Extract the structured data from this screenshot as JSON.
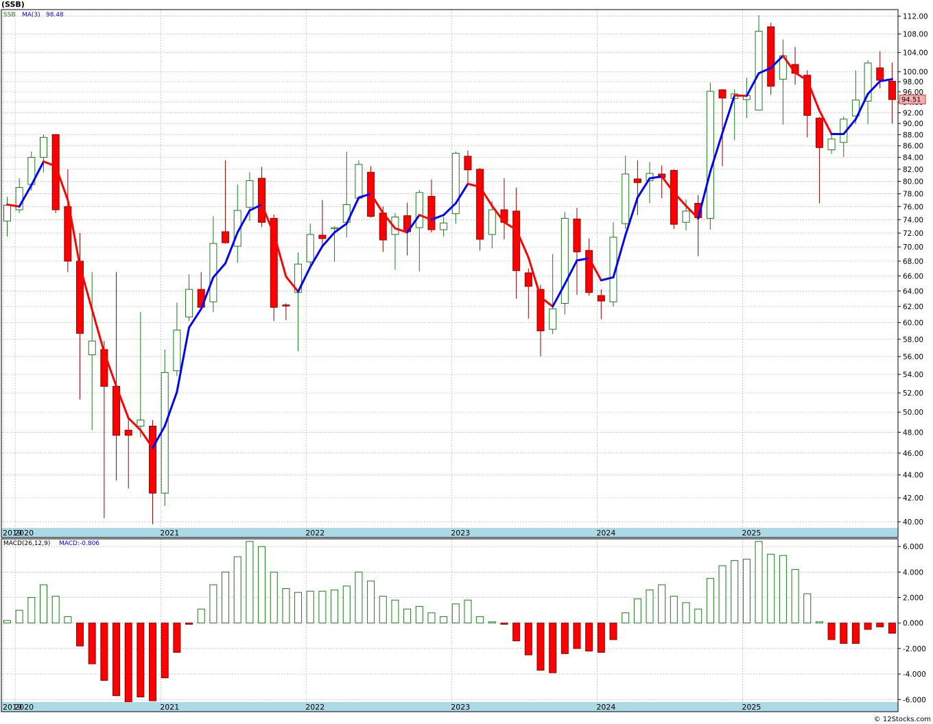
{
  "ticker": "(SSB)",
  "footer": "© 12Stocks.com",
  "colors": {
    "up": "#1b7a1b",
    "down": "#ff0000",
    "ma_up": "#0000ff",
    "ma_down": "#ff0000",
    "grid": "#b4b4b4",
    "axis_band": "#add8e6",
    "price_tag_bg": "#f0b0b0"
  },
  "chart_data": [
    {
      "type": "candlestick",
      "title": "SSB",
      "legend": [
        {
          "label": "SSB",
          "color": "#1b7a1b"
        },
        {
          "label": "MA(3)",
          "color": "#0000ff"
        },
        {
          "label": "98.48",
          "color": "#0000ff"
        }
      ],
      "last_price_label": "94.51",
      "x_tick_labels": [
        "2019",
        "2020",
        "2021",
        "2022",
        "2023",
        "2024",
        "2025"
      ],
      "x_tick_month_index": [
        0,
        1,
        13,
        25,
        37,
        49,
        61
      ],
      "y_tick_labels": [
        "40.00",
        "42.00",
        "44.00",
        "46.00",
        "48.00",
        "50.00",
        "52.00",
        "54.00",
        "56.00",
        "58.00",
        "60.00",
        "62.00",
        "64.00",
        "66.00",
        "68.00",
        "70.00",
        "72.00",
        "74.00",
        "76.00",
        "78.00",
        "80.00",
        "82.00",
        "84.00",
        "86.00",
        "88.00",
        "90.00",
        "92.00",
        "94.00",
        "96.00",
        "98.00",
        "100.00",
        "104.00",
        "108.00",
        "112.00"
      ],
      "y_scale": "log",
      "ylim": [
        39.5,
        113.5
      ],
      "grid": true,
      "candles": [
        {
          "o": 73.8,
          "h": 77.5,
          "l": 71.5,
          "c": 76.2
        },
        {
          "o": 75.5,
          "h": 80.5,
          "l": 75,
          "c": 79
        },
        {
          "o": 79.5,
          "h": 85,
          "l": 78.5,
          "c": 84
        },
        {
          "o": 84,
          "h": 88,
          "l": 81.5,
          "c": 87.5
        },
        {
          "o": 88,
          "h": 88,
          "l": 75,
          "c": 75.5
        },
        {
          "o": 76,
          "h": 82,
          "l": 66.5,
          "c": 68
        },
        {
          "o": 68,
          "h": 72,
          "l": 51.3,
          "c": 58.7
        },
        {
          "o": 56.2,
          "h": 66.5,
          "l": 48.2,
          "c": 57.8
        },
        {
          "o": 56.8,
          "h": 57.8,
          "l": 40.3,
          "c": 52.7
        },
        {
          "o": 52.7,
          "h": 66.5,
          "l": 43.5,
          "c": 47.7
        },
        {
          "o": 48.2,
          "h": 49.3,
          "l": 42.8,
          "c": 47.7
        },
        {
          "o": 48.6,
          "h": 61.3,
          "l": 47.5,
          "c": 49.2
        },
        {
          "o": 48.6,
          "h": 49.2,
          "l": 39.8,
          "c": 42.4
        },
        {
          "o": 42.4,
          "h": 56.8,
          "l": 41.3,
          "c": 54.2
        },
        {
          "o": 54.4,
          "h": 62.5,
          "l": 53.8,
          "c": 59.1
        },
        {
          "o": 60.7,
          "h": 66.2,
          "l": 60.2,
          "c": 64.2
        },
        {
          "o": 64.2,
          "h": 66.5,
          "l": 61.5,
          "c": 61.9
        },
        {
          "o": 62.6,
          "h": 74.5,
          "l": 61.3,
          "c": 70.5
        },
        {
          "o": 72.2,
          "h": 83.5,
          "l": 70.5,
          "c": 70.6
        },
        {
          "o": 70.1,
          "h": 79.5,
          "l": 67.8,
          "c": 75.4
        },
        {
          "o": 75.9,
          "h": 81.5,
          "l": 73.8,
          "c": 80.1
        },
        {
          "o": 80.5,
          "h": 82.4,
          "l": 72.9,
          "c": 73.6
        },
        {
          "o": 74.2,
          "h": 74.8,
          "l": 60.2,
          "c": 61.9
        },
        {
          "o": 62.2,
          "h": 62.4,
          "l": 60.3,
          "c": 62.1
        },
        {
          "o": 63.8,
          "h": 69.2,
          "l": 56.6,
          "c": 67.6
        },
        {
          "o": 67.9,
          "h": 73.4,
          "l": 67.5,
          "c": 71.8
        },
        {
          "o": 71.7,
          "h": 77,
          "l": 70.3,
          "c": 71.2
        },
        {
          "o": 72.8,
          "h": 73,
          "l": 67.9,
          "c": 72.8
        },
        {
          "o": 73.6,
          "h": 85,
          "l": 71.4,
          "c": 76.3
        },
        {
          "o": 77.3,
          "h": 83.5,
          "l": 77,
          "c": 82.8
        },
        {
          "o": 81.5,
          "h": 82.5,
          "l": 74.3,
          "c": 74.5
        },
        {
          "o": 75,
          "h": 76,
          "l": 69.3,
          "c": 71
        },
        {
          "o": 71.8,
          "h": 75,
          "l": 66.8,
          "c": 74.4
        },
        {
          "o": 74.6,
          "h": 76.6,
          "l": 68.8,
          "c": 72.2
        },
        {
          "o": 72.8,
          "h": 78.6,
          "l": 66.6,
          "c": 78.2
        },
        {
          "o": 77.6,
          "h": 80.3,
          "l": 72.1,
          "c": 72.5
        },
        {
          "o": 72.5,
          "h": 74.4,
          "l": 71.5,
          "c": 73.5
        },
        {
          "o": 74.9,
          "h": 85,
          "l": 73.4,
          "c": 84.7
        },
        {
          "o": 84.2,
          "h": 85.2,
          "l": 79.8,
          "c": 81.9
        },
        {
          "o": 82,
          "h": 82.2,
          "l": 69.5,
          "c": 71.1
        },
        {
          "o": 71.8,
          "h": 76.8,
          "l": 69.8,
          "c": 75.5
        },
        {
          "o": 75.5,
          "h": 80.5,
          "l": 71.1,
          "c": 73.6
        },
        {
          "o": 75.3,
          "h": 79,
          "l": 63,
          "c": 66.7
        },
        {
          "o": 66.4,
          "h": 67,
          "l": 60.5,
          "c": 64.6
        },
        {
          "o": 64.2,
          "h": 64.8,
          "l": 56,
          "c": 59
        },
        {
          "o": 59.2,
          "h": 69,
          "l": 58.6,
          "c": 61.7
        },
        {
          "o": 62.4,
          "h": 75.2,
          "l": 61,
          "c": 74.2
        },
        {
          "o": 74.1,
          "h": 75.8,
          "l": 63.5,
          "c": 69.3
        },
        {
          "o": 69.5,
          "h": 71.2,
          "l": 63.4,
          "c": 63.8
        },
        {
          "o": 63.4,
          "h": 64.2,
          "l": 60.4,
          "c": 62.7
        },
        {
          "o": 62.6,
          "h": 73.6,
          "l": 62,
          "c": 71.4
        },
        {
          "o": 73.4,
          "h": 84.3,
          "l": 72.6,
          "c": 81.2
        },
        {
          "o": 80.4,
          "h": 83.5,
          "l": 74.7,
          "c": 79.8
        },
        {
          "o": 80.1,
          "h": 83.2,
          "l": 76.5,
          "c": 81.3
        },
        {
          "o": 81.2,
          "h": 82.6,
          "l": 77.3,
          "c": 80.6
        },
        {
          "o": 81.8,
          "h": 82,
          "l": 72.6,
          "c": 73.3
        },
        {
          "o": 73.6,
          "h": 77.1,
          "l": 72.4,
          "c": 75.3
        },
        {
          "o": 76.5,
          "h": 77.8,
          "l": 68.7,
          "c": 74.3
        },
        {
          "o": 74.2,
          "h": 97.8,
          "l": 72.5,
          "c": 96.1
        },
        {
          "o": 96.4,
          "h": 96.5,
          "l": 82.5,
          "c": 94.8
        },
        {
          "o": 94.7,
          "h": 96.5,
          "l": 87,
          "c": 95.6
        },
        {
          "o": 94.5,
          "h": 98.8,
          "l": 91,
          "c": 95.3
        },
        {
          "o": 92.5,
          "h": 112.2,
          "l": 92.5,
          "c": 108.6
        },
        {
          "o": 109.6,
          "h": 110.5,
          "l": 95.4,
          "c": 97.1
        },
        {
          "o": 98.5,
          "h": 106.8,
          "l": 89.8,
          "c": 103.3
        },
        {
          "o": 101.5,
          "h": 105.2,
          "l": 97.4,
          "c": 99.7
        },
        {
          "o": 99.3,
          "h": 100.3,
          "l": 87.5,
          "c": 91.5
        },
        {
          "o": 91,
          "h": 91.2,
          "l": 76.5,
          "c": 85.7
        },
        {
          "o": 85.3,
          "h": 88.3,
          "l": 84.6,
          "c": 87.2
        },
        {
          "o": 86.6,
          "h": 91.3,
          "l": 84.1,
          "c": 90.8
        },
        {
          "o": 91.4,
          "h": 100.3,
          "l": 89.9,
          "c": 94.4
        },
        {
          "o": 94.2,
          "h": 102.4,
          "l": 89.9,
          "c": 101.8
        },
        {
          "o": 100.8,
          "h": 104.3,
          "l": 96.7,
          "c": 98.3
        },
        {
          "o": 98.1,
          "h": 101.9,
          "l": 90,
          "c": 94.5
        }
      ],
      "moving_average": [
        {
          "i": 0,
          "v": 76.3
        },
        {
          "i": 1,
          "v": 76
        },
        {
          "i": 2,
          "v": 79.4
        },
        {
          "i": 3,
          "v": 83.3
        },
        {
          "i": 4,
          "v": 82.5
        },
        {
          "i": 5,
          "v": 77
        },
        {
          "i": 6,
          "v": 67.3
        },
        {
          "i": 7,
          "v": 61.6
        },
        {
          "i": 8,
          "v": 56.5
        },
        {
          "i": 9,
          "v": 52.7
        },
        {
          "i": 10,
          "v": 49.4
        },
        {
          "i": 11,
          "v": 48.2
        },
        {
          "i": 12,
          "v": 46.5
        },
        {
          "i": 13,
          "v": 48.6
        },
        {
          "i": 14,
          "v": 52.1
        },
        {
          "i": 15,
          "v": 59.4
        },
        {
          "i": 16,
          "v": 61.7
        },
        {
          "i": 17,
          "v": 65.8
        },
        {
          "i": 18,
          "v": 67.7
        },
        {
          "i": 19,
          "v": 72.1
        },
        {
          "i": 20,
          "v": 75.4
        },
        {
          "i": 21,
          "v": 76.3
        },
        {
          "i": 22,
          "v": 71.9
        },
        {
          "i": 23,
          "v": 65.9
        },
        {
          "i": 24,
          "v": 63.9
        },
        {
          "i": 25,
          "v": 67.2
        },
        {
          "i": 26,
          "v": 70.1
        },
        {
          "i": 27,
          "v": 72.1
        },
        {
          "i": 28,
          "v": 73.4
        },
        {
          "i": 29,
          "v": 77.4
        },
        {
          "i": 30,
          "v": 78
        },
        {
          "i": 31,
          "v": 75
        },
        {
          "i": 32,
          "v": 72.7
        },
        {
          "i": 33,
          "v": 72.1
        },
        {
          "i": 34,
          "v": 74.7
        },
        {
          "i": 35,
          "v": 74
        },
        {
          "i": 36,
          "v": 74.7
        },
        {
          "i": 37,
          "v": 76.5
        },
        {
          "i": 38,
          "v": 79.6
        },
        {
          "i": 39,
          "v": 79.1
        },
        {
          "i": 40,
          "v": 76.1
        },
        {
          "i": 41,
          "v": 73.6
        },
        {
          "i": 42,
          "v": 72.5
        },
        {
          "i": 43,
          "v": 68.5
        },
        {
          "i": 44,
          "v": 63.2
        },
        {
          "i": 45,
          "v": 62
        },
        {
          "i": 46,
          "v": 64.9
        },
        {
          "i": 47,
          "v": 68.1
        },
        {
          "i": 48,
          "v": 68.4
        },
        {
          "i": 49,
          "v": 65.4
        },
        {
          "i": 50,
          "v": 65.8
        },
        {
          "i": 51,
          "v": 71.7
        },
        {
          "i": 52,
          "v": 77.4
        },
        {
          "i": 53,
          "v": 80.5
        },
        {
          "i": 54,
          "v": 80.8
        },
        {
          "i": 55,
          "v": 78.2
        },
        {
          "i": 56,
          "v": 76.1
        },
        {
          "i": 57,
          "v": 74.2
        },
        {
          "i": 58,
          "v": 81.6
        },
        {
          "i": 59,
          "v": 88.3
        },
        {
          "i": 60,
          "v": 95.3
        },
        {
          "i": 61,
          "v": 95.2
        },
        {
          "i": 62,
          "v": 99.7
        },
        {
          "i": 63,
          "v": 100.8
        },
        {
          "i": 64,
          "v": 103.3
        },
        {
          "i": 65,
          "v": 99.8
        },
        {
          "i": 66,
          "v": 98.3
        },
        {
          "i": 67,
          "v": 92.4
        },
        {
          "i": 68,
          "v": 88.1
        },
        {
          "i": 69,
          "v": 88.1
        },
        {
          "i": 70,
          "v": 90.8
        },
        {
          "i": 71,
          "v": 95.6
        },
        {
          "i": 72,
          "v": 98.1
        },
        {
          "i": 73,
          "v": 98.5
        }
      ]
    },
    {
      "type": "bar",
      "title": "MACD(26,12,9)",
      "legend": [
        {
          "label": "MACD(26,12,9)",
          "color": "#000000"
        },
        {
          "label": "MACD:-0.806",
          "color": "#0000ff"
        }
      ],
      "y_tick_labels": [
        "-6.000",
        "-4.000",
        "-2.000",
        "0.000",
        "2.000",
        "4.000",
        "6.000"
      ],
      "ylim": [
        -6.2,
        6.6
      ],
      "grid": true,
      "values": [
        0.2,
        1,
        2,
        3,
        2.1,
        0.5,
        -1.8,
        -3.2,
        -4.5,
        -5.7,
        -6.2,
        -5.8,
        -6.1,
        -4.3,
        -2.3,
        -0.1,
        1.1,
        3,
        4,
        5.2,
        6.4,
        6,
        4,
        2.7,
        2.4,
        2.5,
        2.5,
        2.6,
        2.9,
        4,
        3.3,
        2.1,
        1.8,
        1.1,
        1.3,
        0.8,
        0.5,
        1.5,
        1.8,
        0.5,
        0.1,
        -0.1,
        -1.4,
        -2.5,
        -3.7,
        -3.9,
        -2.4,
        -2,
        -2.2,
        -2.3,
        -1.3,
        0.8,
        1.9,
        2.6,
        3,
        2.1,
        1.6,
        1.1,
        3.5,
        4.5,
        4.9,
        5,
        6.4,
        5.4,
        5.3,
        4.2,
        2.3,
        0.1,
        -1.3,
        -1.6,
        -1.6,
        -0.5,
        -0.3,
        -0.8
      ]
    }
  ]
}
